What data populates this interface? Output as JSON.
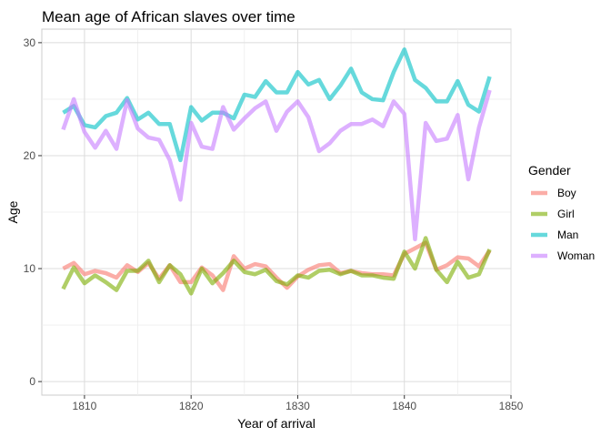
{
  "chart_data": {
    "type": "line",
    "title": "Mean age of African slaves over time",
    "xlabel": "Year of arrival",
    "ylabel": "Age",
    "xlim": [
      1806,
      1850
    ],
    "ylim": [
      -1.2,
      31.2
    ],
    "xticks": [
      1810,
      1820,
      1830,
      1840,
      1850
    ],
    "yticks": [
      0,
      10,
      20,
      30
    ],
    "grid": true,
    "legend": {
      "title": "Gender",
      "placement": "right"
    },
    "series": [
      {
        "name": "Boy",
        "color": "#F8766D",
        "x": [
          1808,
          1809,
          1810,
          1811,
          1812,
          1813,
          1814,
          1815,
          1816,
          1817,
          1818,
          1819,
          1820,
          1821,
          1822,
          1823,
          1824,
          1825,
          1826,
          1827,
          1828,
          1829,
          1830,
          1831,
          1832,
          1833,
          1834,
          1835,
          1836,
          1837,
          1838,
          1839,
          1840,
          1841,
          1842,
          1843,
          1844,
          1845,
          1846,
          1847,
          1848
        ],
        "values": [
          10.0,
          10.5,
          9.5,
          9.8,
          9.6,
          9.2,
          10.3,
          9.7,
          10.5,
          9.1,
          10.3,
          8.8,
          8.8,
          10.1,
          9.4,
          8.1,
          11.1,
          10.0,
          10.4,
          10.2,
          9.2,
          8.3,
          9.3,
          9.9,
          10.3,
          10.4,
          9.6,
          9.8,
          9.6,
          9.5,
          9.5,
          9.4,
          11.3,
          11.8,
          12.3,
          9.9,
          10.3,
          11.0,
          10.9,
          10.2,
          11.6
        ]
      },
      {
        "name": "Girl",
        "color": "#7CAE00",
        "x": [
          1808,
          1809,
          1810,
          1811,
          1812,
          1813,
          1814,
          1815,
          1816,
          1817,
          1818,
          1819,
          1820,
          1821,
          1822,
          1823,
          1824,
          1825,
          1826,
          1827,
          1828,
          1829,
          1830,
          1831,
          1832,
          1833,
          1834,
          1835,
          1836,
          1837,
          1838,
          1839,
          1840,
          1841,
          1842,
          1843,
          1844,
          1845,
          1846,
          1847,
          1848
        ],
        "values": [
          8.2,
          10.1,
          8.7,
          9.4,
          8.8,
          8.1,
          9.8,
          9.8,
          10.7,
          8.8,
          10.3,
          9.5,
          7.8,
          10.0,
          8.7,
          9.6,
          10.7,
          9.7,
          9.5,
          9.9,
          8.9,
          8.6,
          9.4,
          9.2,
          9.8,
          9.9,
          9.5,
          9.8,
          9.4,
          9.4,
          9.2,
          9.1,
          11.5,
          10.0,
          12.7,
          9.9,
          8.8,
          10.6,
          9.2,
          9.5,
          11.7
        ]
      },
      {
        "name": "Man",
        "color": "#00BFC4",
        "x": [
          1808,
          1809,
          1810,
          1811,
          1812,
          1813,
          1814,
          1815,
          1816,
          1817,
          1818,
          1819,
          1820,
          1821,
          1822,
          1823,
          1824,
          1825,
          1826,
          1827,
          1828,
          1829,
          1830,
          1831,
          1832,
          1833,
          1834,
          1835,
          1836,
          1837,
          1838,
          1839,
          1840,
          1841,
          1842,
          1843,
          1844,
          1845,
          1846,
          1847,
          1848
        ],
        "values": [
          23.8,
          24.4,
          22.7,
          22.5,
          23.5,
          23.8,
          25.1,
          23.2,
          23.8,
          22.8,
          22.8,
          19.6,
          24.3,
          23.1,
          23.8,
          23.8,
          23.3,
          25.4,
          25.2,
          26.6,
          25.6,
          25.6,
          27.4,
          26.3,
          26.7,
          25.0,
          26.2,
          27.7,
          25.6,
          25.0,
          24.9,
          27.4,
          29.4,
          26.7,
          26.0,
          24.8,
          24.8,
          26.6,
          24.5,
          23.9,
          27.0
        ]
      },
      {
        "name": "Woman",
        "color": "#C77CFF",
        "x": [
          1808,
          1809,
          1810,
          1811,
          1812,
          1813,
          1814,
          1815,
          1816,
          1817,
          1818,
          1819,
          1820,
          1821,
          1822,
          1823,
          1824,
          1825,
          1826,
          1827,
          1828,
          1829,
          1830,
          1831,
          1832,
          1833,
          1834,
          1835,
          1836,
          1837,
          1838,
          1839,
          1840,
          1841,
          1842,
          1843,
          1844,
          1845,
          1846,
          1847,
          1848
        ],
        "values": [
          22.3,
          25.0,
          22.1,
          20.7,
          22.2,
          20.6,
          24.9,
          22.4,
          21.6,
          21.4,
          19.6,
          16.1,
          22.9,
          20.8,
          20.6,
          24.3,
          22.3,
          23.3,
          24.2,
          24.8,
          22.2,
          23.9,
          24.8,
          23.4,
          20.4,
          21.1,
          22.2,
          22.8,
          22.8,
          23.2,
          22.6,
          24.8,
          23.7,
          12.6,
          22.9,
          21.3,
          21.5,
          23.6,
          17.9,
          22.5,
          25.8
        ]
      }
    ]
  }
}
